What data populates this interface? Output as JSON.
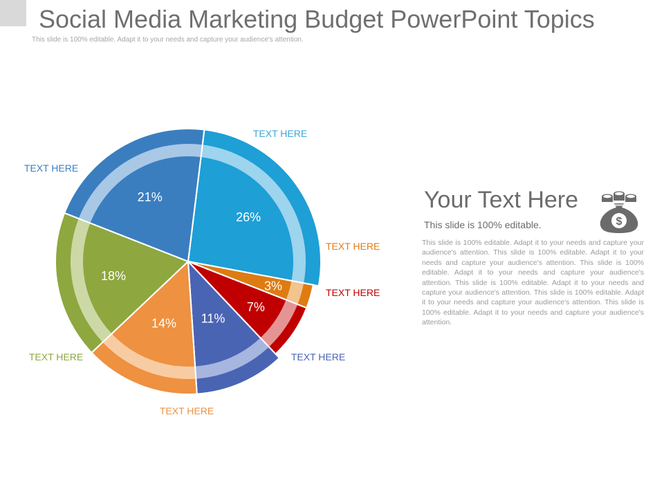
{
  "slide": {
    "title": "Social Media Marketing Budget PowerPoint Topics",
    "subtitle": "This slide is 100% editable. Adapt it to your needs and capture your audience's attention."
  },
  "chart_data": {
    "type": "pie",
    "title": "",
    "slices": [
      {
        "label": "TEXT HERE",
        "value": 26,
        "display": "26%",
        "color": "#1e9fd6",
        "ring_color": "#9dd4ee",
        "label_color": "#3aa7d8"
      },
      {
        "label": "TEXT HERE",
        "value": 3,
        "display": "3%",
        "color": "#de7b13",
        "ring_color": "#f2c48e",
        "label_color": "#e07c1a"
      },
      {
        "label": "TEXT HERE",
        "value": 7,
        "display": "7%",
        "color": "#c00000",
        "ring_color": "#e59494",
        "label_color": "#c00000"
      },
      {
        "label": "TEXT HERE",
        "value": 11,
        "display": "11%",
        "color": "#4a64b4",
        "ring_color": "#a7b6de",
        "label_color": "#4a64b4"
      },
      {
        "label": "TEXT HERE",
        "value": 14,
        "display": "14%",
        "color": "#ee9140",
        "ring_color": "#f8cca3",
        "label_color": "#ee9140"
      },
      {
        "label": "TEXT HERE",
        "value": 18,
        "display": "18%",
        "color": "#8ea73f",
        "ring_color": "#ccd9a6",
        "label_color": "#8ea73f"
      },
      {
        "label": "TEXT HERE",
        "value": 21,
        "display": "21%",
        "color": "#3a7ec0",
        "ring_color": "#a8c8e6",
        "label_color": "#3a7ec0"
      }
    ]
  },
  "side_panel": {
    "heading": "Your Text Here",
    "subheading": "This slide is 100% editable.",
    "body": "This slide is 100% editable. Adapt it to your needs and capture your audience's attention. This slide is 100% editable. Adapt it to your needs and capture your audience's attention. This slide is 100% editable. Adapt it to your needs and capture your audience's attention. This slide is 100% editable. Adapt it to your needs and capture your audience's attention. This slide is 100% editable. Adapt it to your needs and capture your audience's attention. This slide is 100% editable. Adapt it to your needs and capture your audience's attention.",
    "icon": "money-bag-icon"
  }
}
